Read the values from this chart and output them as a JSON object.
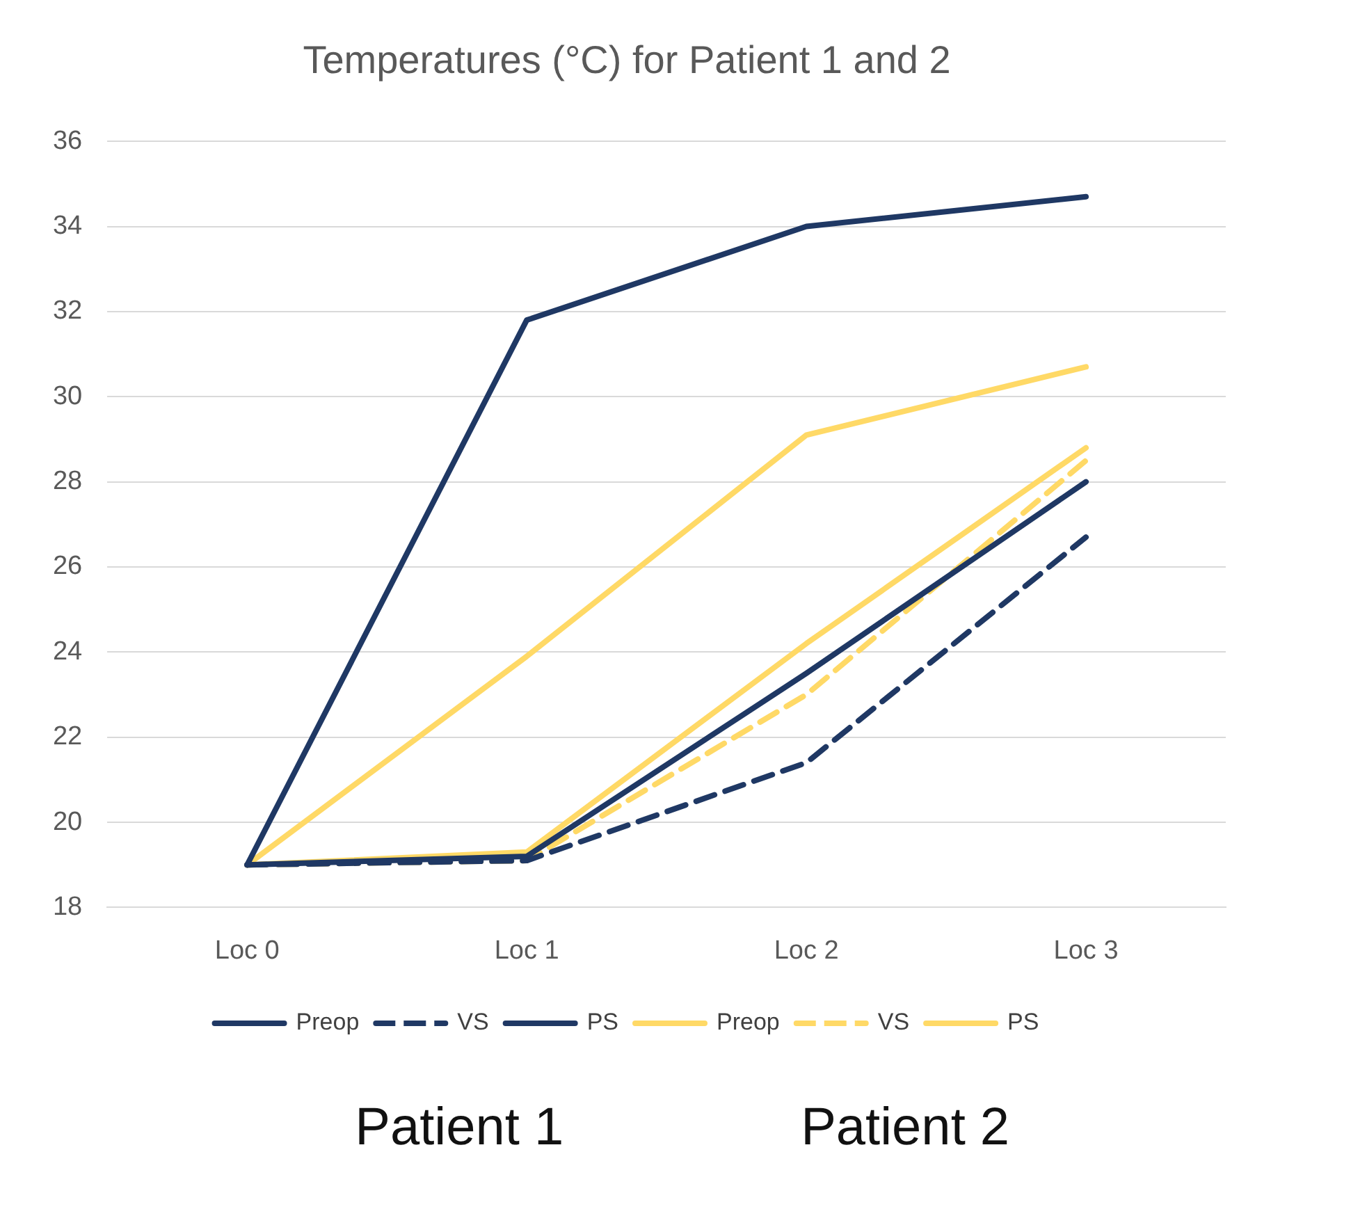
{
  "chart_data": {
    "type": "line",
    "title": "Temperatures (°C) for Patient 1 and 2",
    "categories": [
      "Loc 0",
      "Loc 1",
      "Loc 2",
      "Loc 3"
    ],
    "series": [
      {
        "name": "Preop",
        "color": "#1f3864",
        "line_style": "solid",
        "values": [
          19.0,
          31.8,
          34.0,
          34.7
        ]
      },
      {
        "name": "VS",
        "color": "#1f3864",
        "line_style": "dashed",
        "values": [
          19.0,
          19.1,
          21.4,
          26.7
        ]
      },
      {
        "name": "PS",
        "color": "#1f3864",
        "line_style": "solid",
        "values": [
          19.0,
          19.2,
          23.5,
          28.0
        ]
      },
      {
        "name": "Preop",
        "color": "#ffd966",
        "line_style": "solid",
        "values": [
          19.0,
          23.9,
          29.1,
          30.7
        ]
      },
      {
        "name": "VS",
        "color": "#ffd966",
        "line_style": "dashed",
        "values": [
          19.0,
          19.1,
          23.0,
          28.5
        ]
      },
      {
        "name": "PS",
        "color": "#ffd966",
        "line_style": "solid",
        "values": [
          19.0,
          19.3,
          24.2,
          28.8
        ]
      }
    ],
    "ylim": [
      18,
      36
    ],
    "yticks": [
      18,
      20,
      22,
      24,
      26,
      28,
      30,
      32,
      34,
      36
    ],
    "grid": "y",
    "legend": "bottom",
    "marker": "none",
    "annotations": [
      "Patient 1",
      "Patient 2"
    ]
  }
}
